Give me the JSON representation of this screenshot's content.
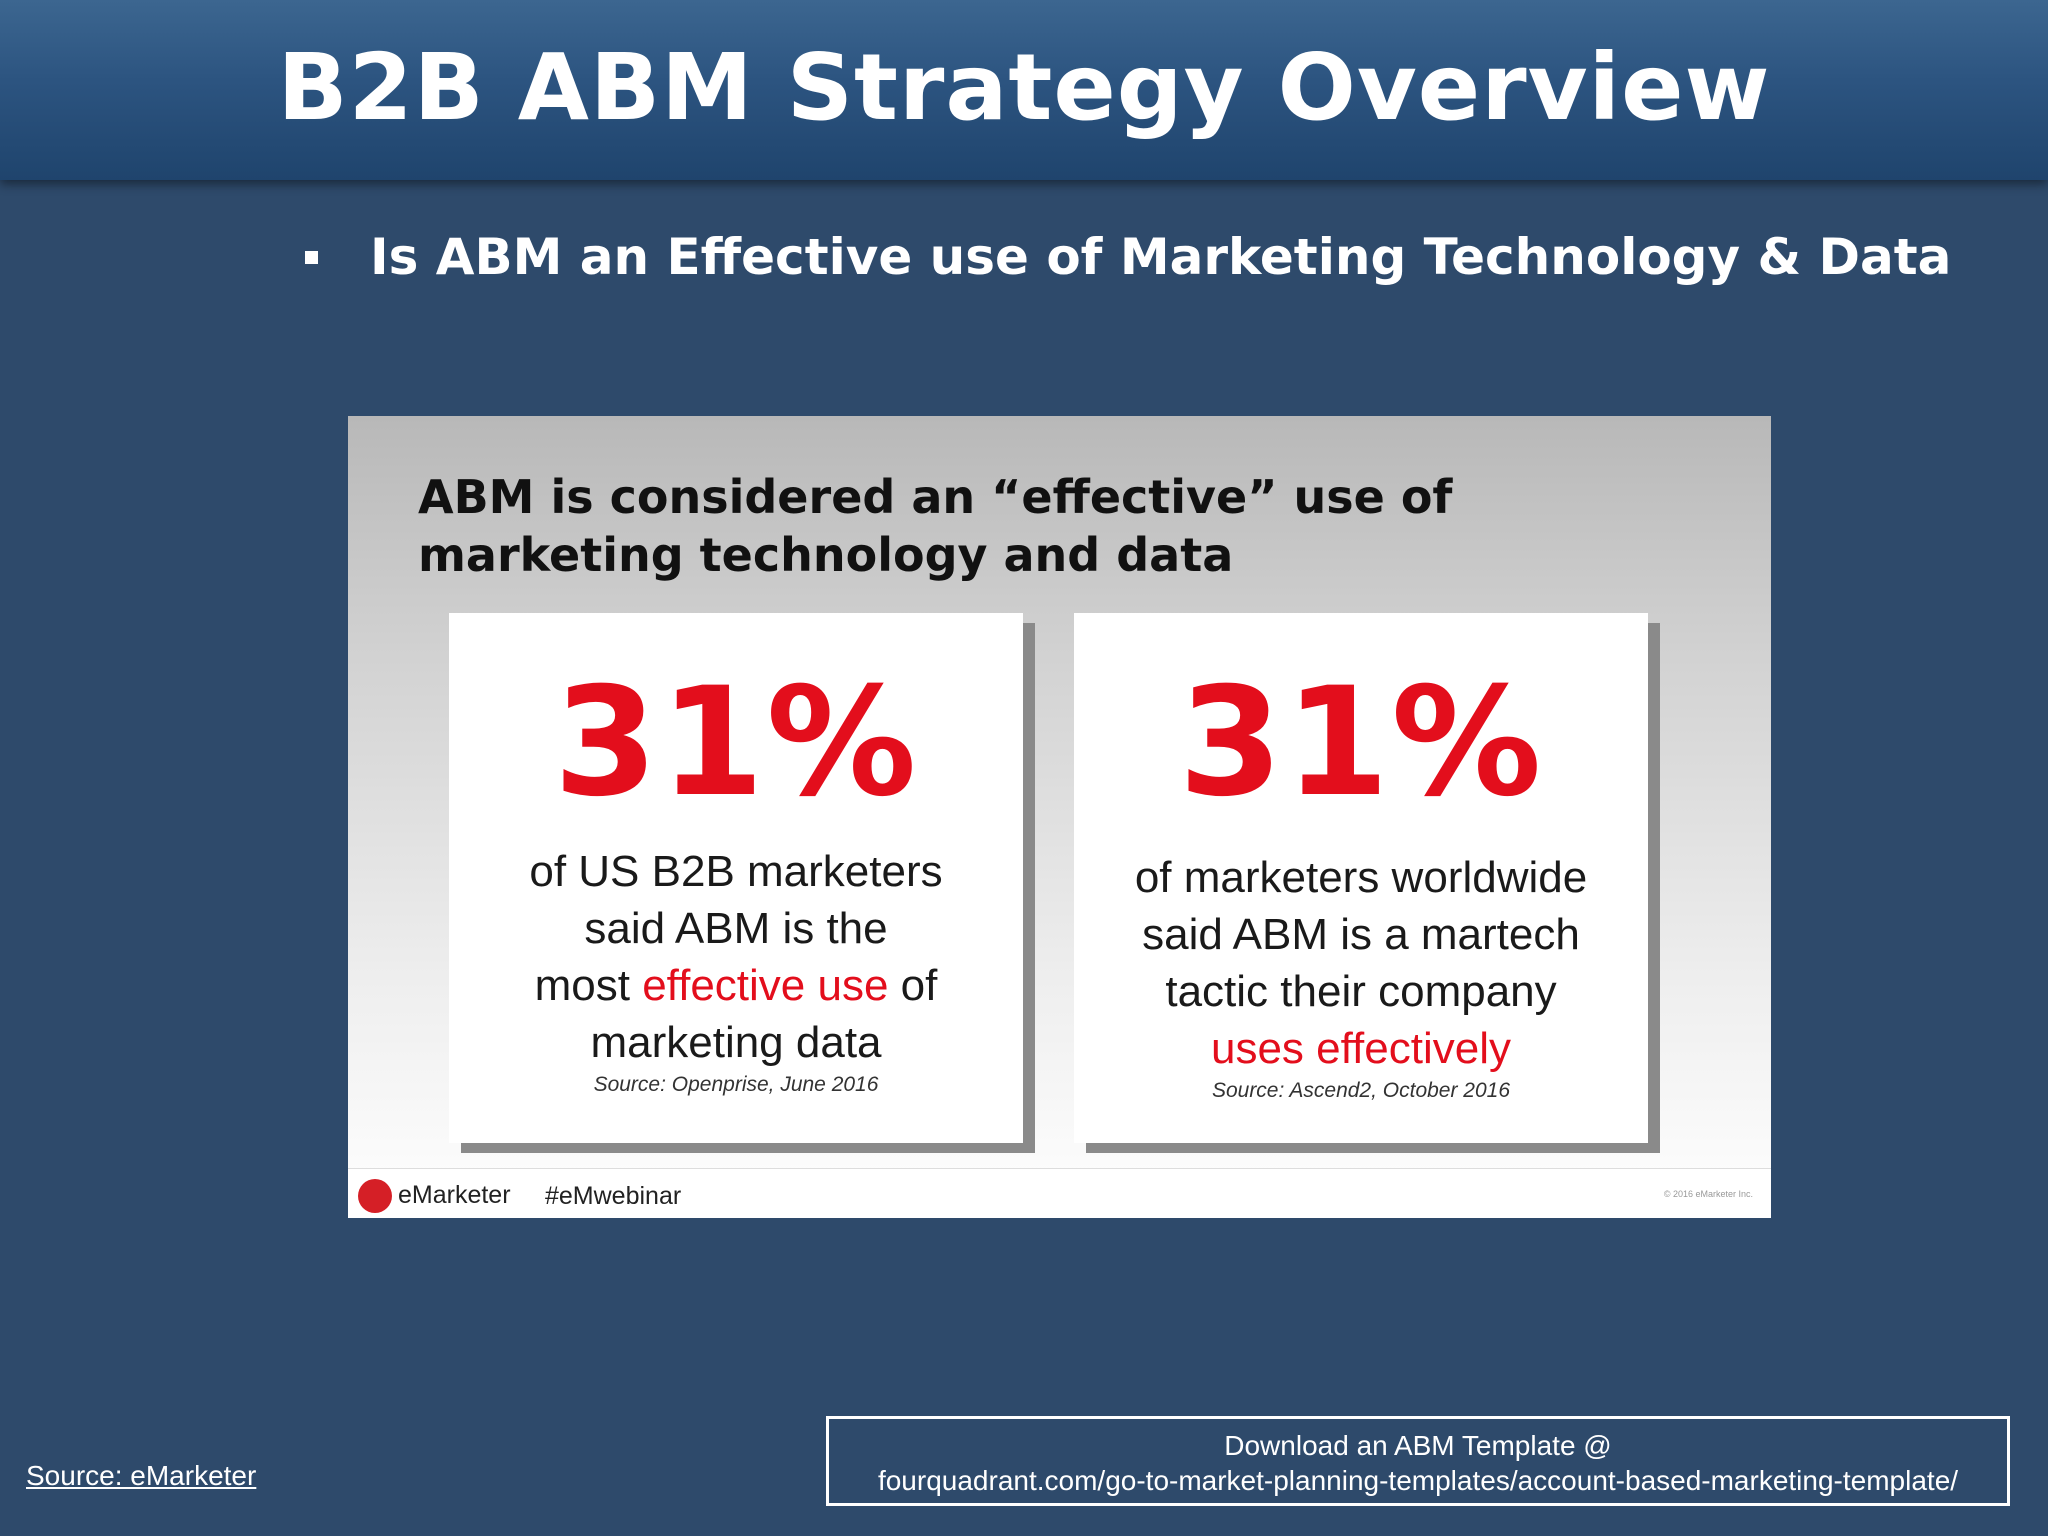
{
  "header": {
    "title": "B2B ABM Strategy Overview"
  },
  "bullet": {
    "text": "Is ABM an Effective use of Marketing Technology & Data"
  },
  "slide_image": {
    "title_line1": "ABM is considered an “effective” use of",
    "title_line2": "marketing technology and data",
    "cards": [
      {
        "percent": "31%",
        "line1": "of US B2B marketers",
        "line2": "said ABM is the",
        "line3_pre": "most ",
        "line3_highlight": "effective use",
        "line3_post": " of",
        "line4": "marketing data",
        "source": "Source: Openprise, June 2016"
      },
      {
        "percent": "31%",
        "line1": "of marketers worldwide",
        "line2": "said ABM is a martech",
        "line3": "tactic their company",
        "line4_highlight": "uses effectively",
        "source": "Source: Ascend2, October 2016"
      }
    ],
    "footer": {
      "logo_text": "eMarketer",
      "hashtag": "#eMwebinar",
      "copyright": "© 2016 eMarketer Inc."
    }
  },
  "footer": {
    "source_link": "Source: eMarketer",
    "download_line1": "Download an ABM Template @",
    "download_line2": "fourquadrant.com/go-to-market-planning-templates/account-based-marketing-template/"
  }
}
